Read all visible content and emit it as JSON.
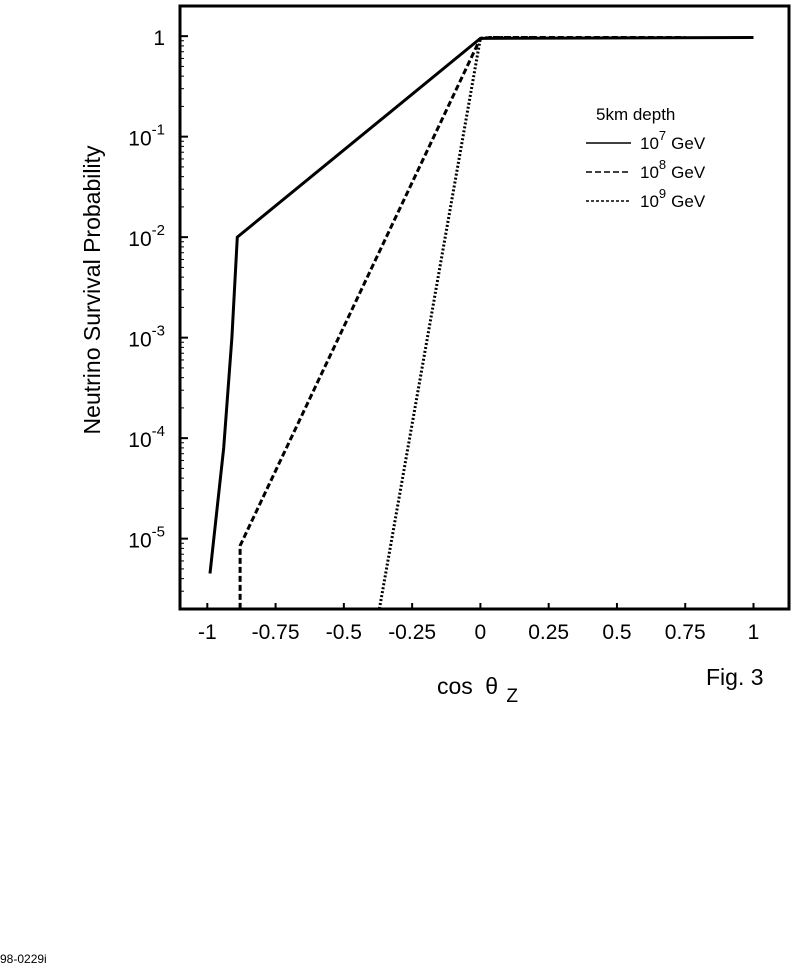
{
  "chart_data": {
    "type": "line",
    "xlabel_prefix": "cos",
    "xlabel_theta": "θ",
    "xlabel_sub": "Z",
    "ylabel": "Neutrino  Survival  Probability",
    "xlim": [
      -1.1,
      1.13
    ],
    "ylim_log10": [
      -5.7,
      0.3
    ],
    "y_scale": "log",
    "x_ticks": [
      -1,
      -0.75,
      -0.5,
      -0.25,
      0,
      0.25,
      0.5,
      0.75,
      1
    ],
    "x_tick_labels": [
      "-1",
      "-0.75",
      "-0.5",
      "-0.25",
      "0",
      "0.25",
      "0.5",
      "0.75",
      "1"
    ],
    "y_ticks": [
      {
        "value": 1,
        "base": "1",
        "exp": ""
      },
      {
        "value": 0.1,
        "base": "10",
        "exp": "-1"
      },
      {
        "value": 0.01,
        "base": "10",
        "exp": "-2"
      },
      {
        "value": 0.001,
        "base": "10",
        "exp": "-3"
      },
      {
        "value": 0.0001,
        "base": "10",
        "exp": "-4"
      },
      {
        "value": 1e-05,
        "base": "10",
        "exp": "-5"
      }
    ],
    "legend": {
      "title": "5km depth",
      "placement": "upper-right"
    },
    "series": [
      {
        "name_base": "10",
        "name_exp": "7",
        "name_unit": "GeV",
        "style": "solid",
        "x": [
          -0.99,
          -0.94,
          -0.91,
          -0.89,
          -0.89,
          0.0,
          1.0
        ],
        "y": [
          4.5e-06,
          8e-05,
          0.001,
          0.01,
          0.01,
          0.95,
          0.97
        ]
      },
      {
        "name_base": "10",
        "name_exp": "8",
        "name_unit": "GeV",
        "style": "dashed",
        "x": [
          -0.88,
          -0.88,
          0.0,
          0.04,
          0.2,
          0.75
        ],
        "y": [
          2e-06,
          8.5e-06,
          0.95,
          0.97,
          0.97,
          0.97
        ]
      },
      {
        "name_base": "10",
        "name_exp": "9",
        "name_unit": "GeV",
        "style": "dotted",
        "x": [
          -0.37,
          0.0,
          0.04,
          0.2
        ],
        "y": [
          2e-06,
          0.95,
          0.97,
          0.97
        ]
      }
    ]
  },
  "figure_label": "Fig.  3",
  "doc_id": "98-0229i"
}
